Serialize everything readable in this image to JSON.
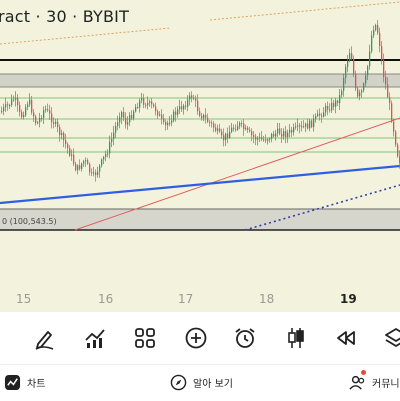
{
  "chart": {
    "title": "ract · 30 · BYBIT",
    "price_label": "0 (100,543.5)",
    "date_labels": [
      "15",
      "16",
      "17",
      "18",
      "19"
    ],
    "up_color": "#2a9d5c",
    "down_color": "#d9534f",
    "trendline_color": "#2f5fe0",
    "background_color": "#f3f3dd"
  },
  "toolbar": {
    "icons": [
      "pen-draw-icon",
      "indicators-icon",
      "grid-icon",
      "plus-circle-icon",
      "alarm-clock-icon",
      "candles-icon",
      "rewind-icon",
      "layers-icon"
    ]
  },
  "bottom_nav": {
    "chart_label": "차트",
    "explore_label": "알아 보기",
    "community_label": "커뮤니"
  }
}
